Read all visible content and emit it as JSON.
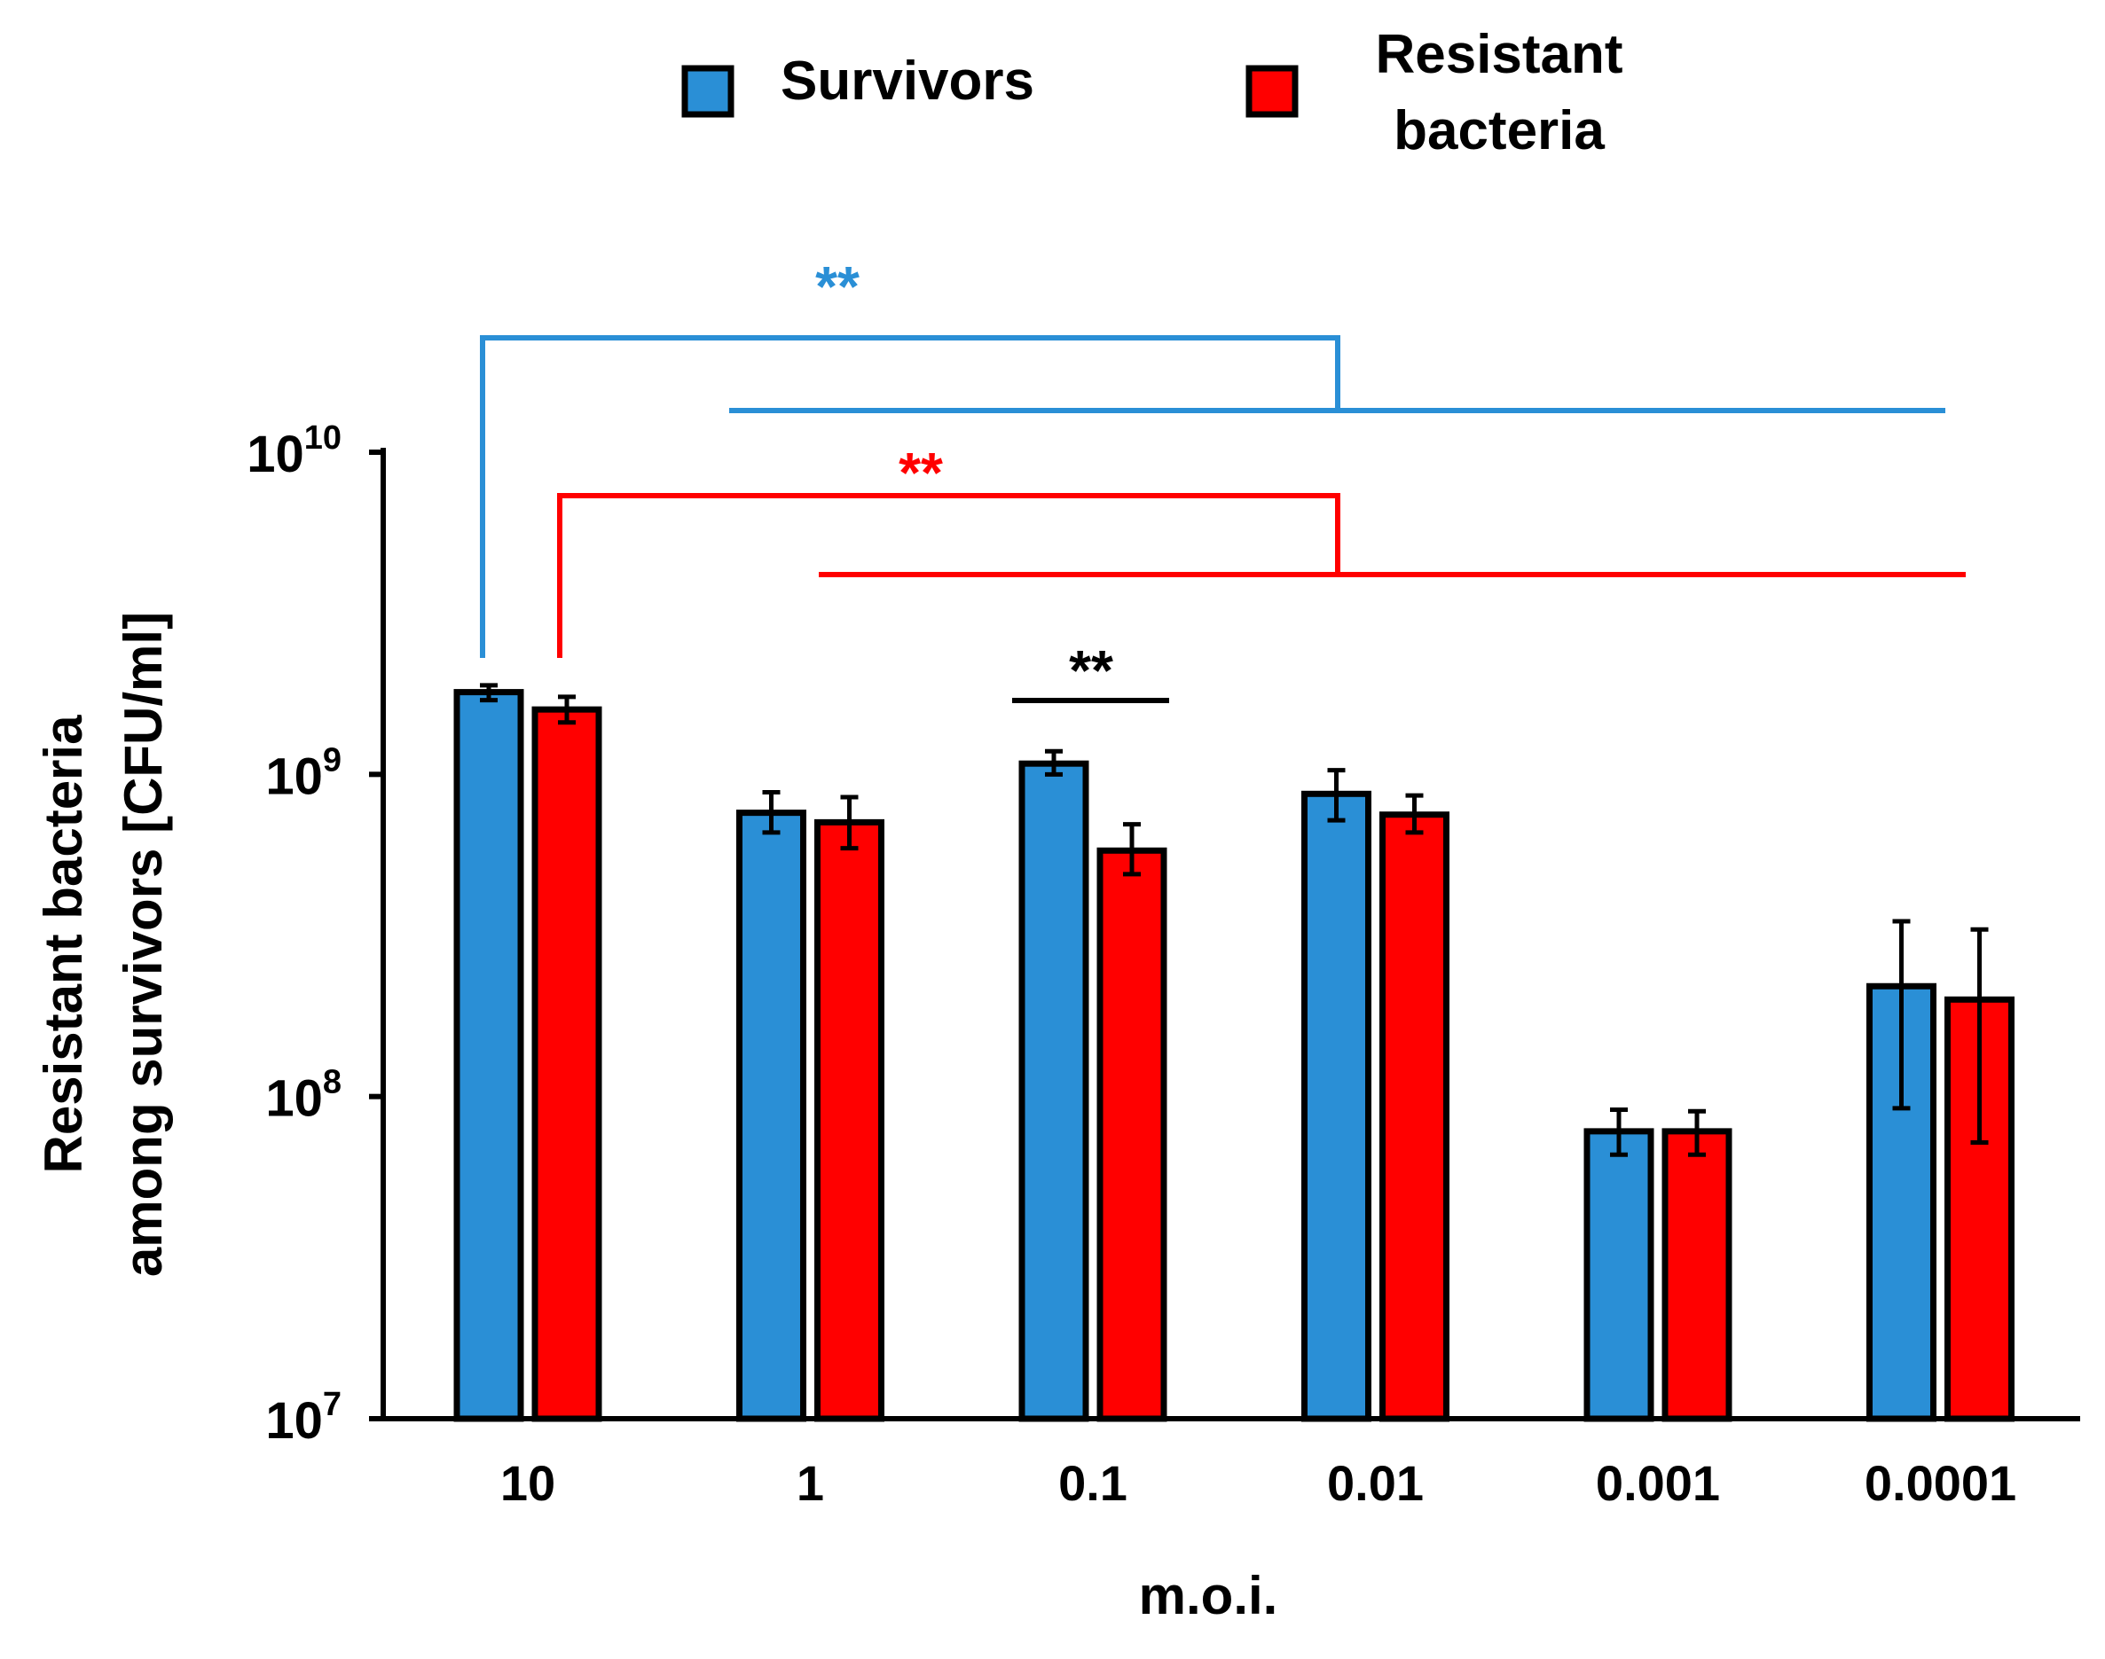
{
  "chart_data": {
    "type": "bar",
    "xlabel": "m.o.i.",
    "ylabel_lines": [
      "Resistant bacteria",
      "among survivors [CFU/ml]"
    ],
    "yscale": "log",
    "ylim": [
      10000000,
      10000000000
    ],
    "yticks": [
      {
        "value": 10000000,
        "base": "10",
        "exp": "7"
      },
      {
        "value": 100000000,
        "base": "10",
        "exp": "8"
      },
      {
        "value": 1000000000,
        "base": "10",
        "exp": "9"
      },
      {
        "value": 10000000000,
        "base": "10",
        "exp": "10"
      }
    ],
    "categories": [
      "10",
      "1",
      "0.1",
      "0.01",
      "0.001",
      "0.0001"
    ],
    "series": [
      {
        "name": "Survivors",
        "color": "#2a8fd6",
        "values": [
          1800000000,
          760000000,
          1080000000,
          870000000,
          78000000,
          220000000
        ],
        "err_low": [
          1700000000,
          660000000,
          1000000000,
          720000000,
          66000000,
          92000000
        ],
        "err_high": [
          1890000000,
          880000000,
          1180000000,
          1030000000,
          91000000,
          350000000
        ]
      },
      {
        "name": "Resistant bacteria",
        "name_lines": [
          "Resistant",
          "bacteria"
        ],
        "color": "#ff0000",
        "values": [
          1590000000,
          710000000,
          580000000,
          750000000,
          78000000,
          200000000
        ],
        "err_low": [
          1450000000,
          590000000,
          490000000,
          660000000,
          66000000,
          72000000
        ],
        "err_high": [
          1740000000,
          850000000,
          700000000,
          860000000,
          90000000,
          330000000
        ]
      }
    ],
    "legend_position": "top-center",
    "annotations": [
      {
        "text": "**",
        "color": "#2a8fd6",
        "type": "bracket",
        "from": "10",
        "to": "1-0.0001",
        "series": "Survivors"
      },
      {
        "text": "**",
        "color": "#ff0000",
        "type": "bracket",
        "from": "10",
        "to": "1-0.0001",
        "series": "Resistant bacteria"
      },
      {
        "text": "**",
        "color": "#000000",
        "type": "bar-pair",
        "category": "0.1"
      }
    ],
    "grid": false
  }
}
